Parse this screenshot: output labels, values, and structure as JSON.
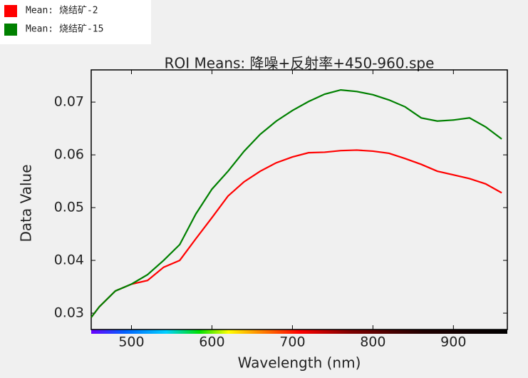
{
  "chart_data": {
    "type": "line",
    "title": "ROI Means: 降噪+反射率+450-960.spe",
    "xlabel": "Wavelength (nm)",
    "ylabel": "Data Value",
    "x": [
      450,
      460,
      480,
      500,
      520,
      540,
      560,
      580,
      600,
      620,
      640,
      660,
      680,
      700,
      720,
      740,
      760,
      780,
      800,
      820,
      840,
      860,
      880,
      900,
      920,
      940,
      960
    ],
    "series": [
      {
        "name": "Mean: 烧结矿-2",
        "color": "#ff0000",
        "values": [
          0.0292,
          0.0312,
          0.0342,
          0.0355,
          0.0362,
          0.0387,
          0.04,
          0.0441,
          0.0481,
          0.0522,
          0.0549,
          0.0569,
          0.0585,
          0.0596,
          0.0604,
          0.0605,
          0.0608,
          0.0609,
          0.0607,
          0.0603,
          0.0593,
          0.0582,
          0.0569,
          0.0562,
          0.0555,
          0.0545,
          0.0528
        ]
      },
      {
        "name": "Mean: 烧结矿-15",
        "color": "#008000",
        "values": [
          0.0292,
          0.0312,
          0.0342,
          0.0355,
          0.0373,
          0.04,
          0.043,
          0.0488,
          0.0535,
          0.0569,
          0.0607,
          0.0639,
          0.0664,
          0.0684,
          0.0701,
          0.0715,
          0.0723,
          0.072,
          0.0714,
          0.0704,
          0.0691,
          0.067,
          0.0664,
          0.0666,
          0.067,
          0.0653,
          0.063
        ]
      }
    ],
    "xlim": [
      450,
      967
    ],
    "xticks": [
      500,
      600,
      700,
      800,
      900
    ],
    "ylim": [
      0.0269,
      0.0761
    ],
    "yticks": [
      0.03,
      0.04,
      0.05,
      0.06,
      0.07
    ]
  }
}
